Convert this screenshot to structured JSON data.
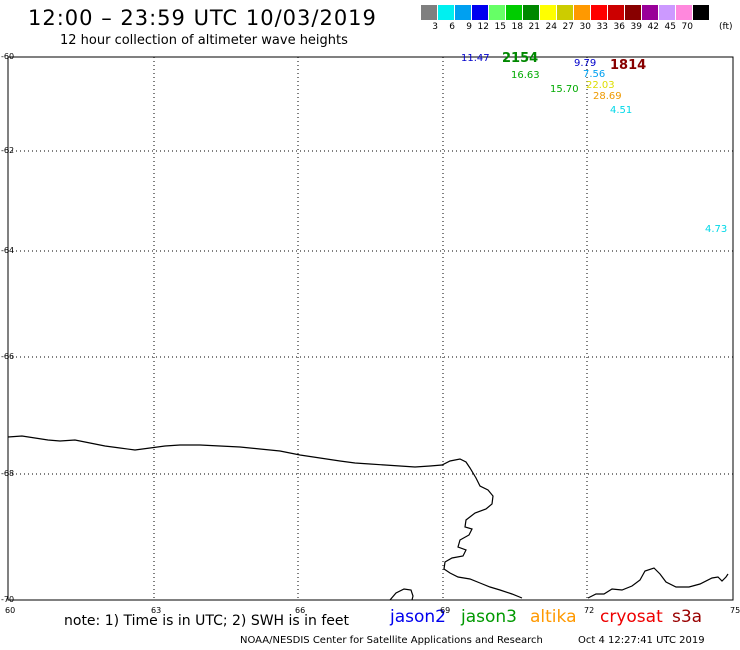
{
  "header": {
    "title": "12:00 – 23:59 UTC 10/03/2019",
    "subtitle": "12 hour collection of altimeter wave heights"
  },
  "colorbar": {
    "colors": [
      "#7f7f7f",
      "#00f0f0",
      "#00a0f0",
      "#0000f0",
      "#66ff66",
      "#00cc00",
      "#008800",
      "#ffff00",
      "#cccc00",
      "#ff9900",
      "#ff0000",
      "#cc0000",
      "#880000",
      "#990099",
      "#cc99ff",
      "#ff88dd",
      "#000000"
    ],
    "labels": [
      "3",
      "6",
      "9",
      "12",
      "15",
      "18",
      "21",
      "24",
      "27",
      "30",
      "33",
      "36",
      "39",
      "42",
      "45",
      "70"
    ],
    "unit": "(ft)"
  },
  "map": {
    "lat_labels": [
      "-60",
      "-62",
      "-64",
      "-66",
      "-68",
      "-70"
    ],
    "lon_labels": [
      "60",
      "63",
      "66",
      "69",
      "72",
      "75"
    ]
  },
  "observations": [
    {
      "label": "11.47",
      "color": "#0000cc"
    },
    {
      "label": "2154",
      "color": "#008800",
      "big": true
    },
    {
      "label": "16.63",
      "color": "#00aa00"
    },
    {
      "label": "9.79",
      "color": "#0000cc"
    },
    {
      "label": "1814",
      "color": "#880000",
      "big": true
    },
    {
      "label": "7.56",
      "color": "#00a0f0"
    },
    {
      "label": "22.03",
      "color": "#dddd00"
    },
    {
      "label": "15.70",
      "color": "#00aa00"
    },
    {
      "label": "28.69",
      "color": "#ee9900"
    },
    {
      "label": "4.51",
      "color": "#00d8e8"
    },
    {
      "label": "4.73",
      "color": "#00d8e8"
    }
  ],
  "footer": {
    "note": "note: 1) Time is in UTC; 2) SWH is in feet",
    "satellites": [
      {
        "name": "jason2",
        "color": "#0000ee"
      },
      {
        "name": "jason3",
        "color": "#009900"
      },
      {
        "name": "altika",
        "color": "#ff9900"
      },
      {
        "name": "cryosat",
        "color": "#ee0000"
      },
      {
        "name": "s3a",
        "color": "#990000"
      }
    ],
    "credit": "NOAA/NESDIS Center for Satellite Applications and Research",
    "timestamp": "Oct  4 12:27:41 UTC 2019"
  }
}
